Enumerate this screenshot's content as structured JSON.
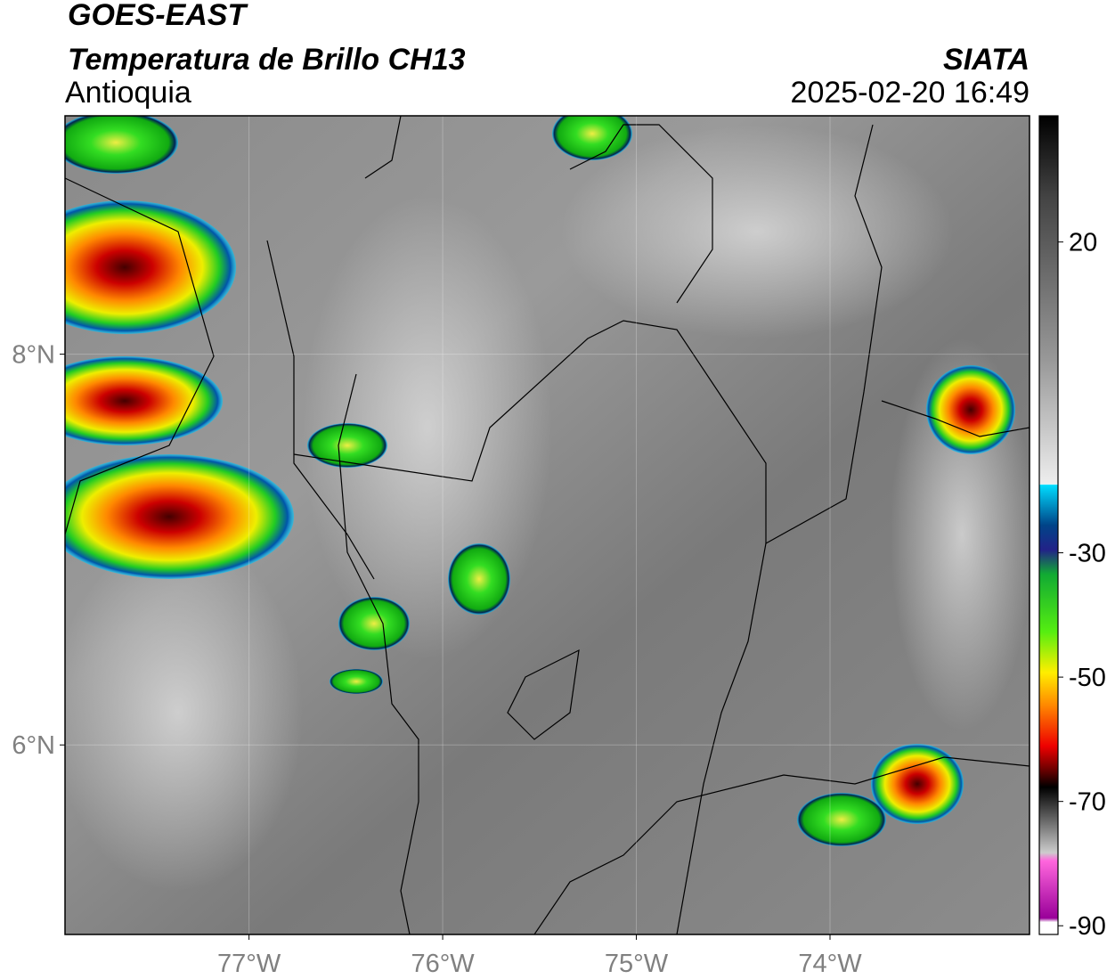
{
  "header": {
    "title": "GOES-EAST",
    "subtitle": "Temperatura de Brillo CH13",
    "region": "Antioquia",
    "source": "SIATA",
    "datetime": "2025-02-20 16:49"
  },
  "map": {
    "xlim": [
      -77.95,
      -72.97
    ],
    "ylim": [
      5.03,
      9.22
    ],
    "xticks": [
      {
        "value": -77,
        "label": "77°W"
      },
      {
        "value": -76,
        "label": "76°W"
      },
      {
        "value": -75,
        "label": "75°W"
      },
      {
        "value": -74,
        "label": "74°W"
      }
    ],
    "yticks": [
      {
        "value": 8,
        "label": "8°N"
      },
      {
        "value": 6,
        "label": "6°N"
      }
    ],
    "grid": true
  },
  "colorbar": {
    "lim": [
      40.3,
      -91.4
    ],
    "ticks": [
      20,
      -30,
      -50,
      -70,
      -90
    ]
  }
}
